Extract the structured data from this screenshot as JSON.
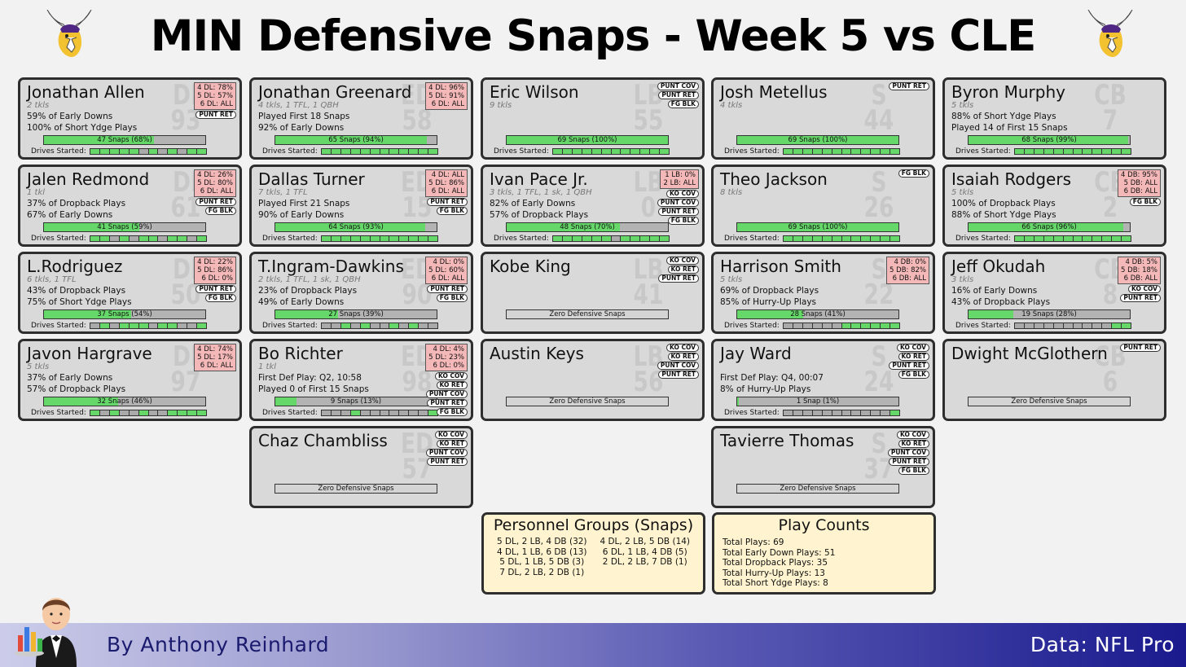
{
  "title": "MIN Defensive Snaps - Week 5 vs CLE",
  "footer": {
    "author": "By Anthony Reinhard",
    "source": "Data: NFL Pro"
  },
  "colors": {
    "fill": "#66d86a",
    "bar_bg": "#b3b3b3",
    "alignment_bg": "#f4b8b8",
    "card_bg": "#d9d9d9",
    "summary_bg": "#fff4cf"
  },
  "drives_total": 12,
  "players": [
    {
      "col": 0,
      "row": 0,
      "name": "Jonathan Allen",
      "pos": "DI",
      "num": "93",
      "sub": "2 tkls",
      "lines": [
        "59% of Early Downs",
        "100% of Short Ydge Plays"
      ],
      "bar": "47 Snaps (68%)",
      "pct": 0.68,
      "drives": [
        1,
        1,
        1,
        1,
        1,
        0,
        1,
        0,
        1,
        0,
        1,
        1
      ],
      "align": [
        "4 DL: 78%",
        "5 DL: 57%",
        "6 DL: ALL"
      ],
      "tags": [
        "PUNT RET"
      ]
    },
    {
      "col": 1,
      "row": 0,
      "name": "Jonathan Greenard",
      "pos": "ED",
      "num": "58",
      "sub": "4 tkls, 1 TFL, 1 QBH",
      "lines": [
        "Played First 18 Snaps",
        "92% of Early Downs"
      ],
      "bar": "65 Snaps (94%)",
      "pct": 0.94,
      "drives": [
        1,
        1,
        1,
        1,
        1,
        1,
        1,
        1,
        1,
        1,
        1,
        1
      ],
      "align": [
        "4 DL: 96%",
        "5 DL: 91%",
        "6 DL: ALL"
      ],
      "tags": []
    },
    {
      "col": 2,
      "row": 0,
      "name": "Eric Wilson",
      "pos": "LB",
      "num": "55",
      "sub": "9 tkls",
      "lines": [],
      "bar": "69 Snaps (100%)",
      "pct": 1,
      "drives": [
        1,
        1,
        1,
        1,
        1,
        1,
        1,
        1,
        1,
        1,
        1,
        1
      ],
      "align": [],
      "tags": [
        "PUNT COV",
        "PUNT RET",
        "FG BLK"
      ]
    },
    {
      "col": 3,
      "row": 0,
      "name": "Josh Metellus",
      "pos": "S",
      "num": "44",
      "sub": "4 tkls",
      "lines": [],
      "bar": "69 Snaps (100%)",
      "pct": 1,
      "drives": [
        1,
        1,
        1,
        1,
        1,
        1,
        1,
        1,
        1,
        1,
        1,
        1
      ],
      "align": [],
      "tags": [
        "PUNT RET"
      ]
    },
    {
      "col": 4,
      "row": 0,
      "name": "Byron Murphy",
      "pos": "CB",
      "num": "7",
      "sub": "5 tkls",
      "lines": [
        "88% of Short Ydge Plays",
        "Played 14 of First 15 Snaps"
      ],
      "bar": "68 Snaps (99%)",
      "pct": 0.99,
      "drives": [
        1,
        1,
        1,
        1,
        1,
        1,
        1,
        1,
        1,
        1,
        1,
        1
      ],
      "align": [],
      "tags": []
    },
    {
      "col": 0,
      "row": 1,
      "name": "Jalen Redmond",
      "pos": "DI",
      "num": "61",
      "sub": "1 tkl",
      "lines": [
        "37% of Dropback Plays",
        "67% of Early Downs"
      ],
      "bar": "41 Snaps (59%)",
      "pct": 0.59,
      "drives": [
        1,
        1,
        0,
        1,
        0,
        1,
        1,
        0,
        1,
        1,
        0,
        1
      ],
      "align": [
        "4 DL: 26%",
        "5 DL: 80%",
        "6 DL: ALL"
      ],
      "tags": [
        "PUNT RET",
        "FG BLK"
      ]
    },
    {
      "col": 1,
      "row": 1,
      "name": "Dallas Turner",
      "pos": "ED",
      "num": "15",
      "sub": "7 tkls, 1 TFL",
      "lines": [
        "Played First 21 Snaps",
        "90% of Early Downs"
      ],
      "bar": "64 Snaps (93%)",
      "pct": 0.93,
      "drives": [
        1,
        1,
        1,
        1,
        1,
        1,
        1,
        1,
        1,
        1,
        1,
        1
      ],
      "align": [
        "4 DL: ALL",
        "5 DL: 86%",
        "6 DL: ALL"
      ],
      "tags": [
        "PUNT RET",
        "FG BLK"
      ]
    },
    {
      "col": 2,
      "row": 1,
      "name": "Ivan Pace Jr.",
      "pos": "LB",
      "num": "0",
      "sub": "3 tkls, 1 TFL, 1 sk, 1 QBH",
      "lines": [
        "82% of Early Downs",
        "57% of Dropback Plays"
      ],
      "bar": "48 Snaps (70%)",
      "pct": 0.7,
      "drives": [
        1,
        1,
        1,
        1,
        1,
        1,
        0,
        1,
        1,
        1,
        1,
        1
      ],
      "align": [
        "1 LB: 0%",
        "2 LB: ALL"
      ],
      "tags": [
        "KO COV",
        "PUNT COV",
        "PUNT RET",
        "FG BLK"
      ]
    },
    {
      "col": 3,
      "row": 1,
      "name": "Theo Jackson",
      "pos": "S",
      "num": "26",
      "sub": "8 tkls",
      "lines": [],
      "bar": "69 Snaps (100%)",
      "pct": 1,
      "drives": [
        1,
        1,
        1,
        1,
        1,
        1,
        1,
        1,
        1,
        1,
        1,
        1
      ],
      "align": [],
      "tags": [
        "FG BLK"
      ]
    },
    {
      "col": 4,
      "row": 1,
      "name": "Isaiah Rodgers",
      "pos": "CB",
      "num": "2",
      "sub": "5 tkls",
      "lines": [
        "100% of Dropback Plays",
        "88% of Short Ydge Plays"
      ],
      "bar": "66 Snaps (96%)",
      "pct": 0.96,
      "drives": [
        1,
        1,
        1,
        1,
        1,
        1,
        1,
        1,
        1,
        1,
        1,
        1
      ],
      "align": [
        "4 DB: 95%",
        "5 DB: ALL",
        "6 DB: ALL"
      ],
      "tags": [
        "FG BLK"
      ]
    },
    {
      "col": 0,
      "row": 2,
      "name": "L.Rodriguez",
      "pos": "DI",
      "num": "50",
      "sub": "6 tkls, 1 TFL",
      "lines": [
        "43% of Dropback Plays",
        "75% of Short Ydge Plays"
      ],
      "bar": "37 Snaps (54%)",
      "pct": 0.54,
      "drives": [
        0,
        1,
        0,
        1,
        1,
        1,
        0,
        1,
        1,
        0,
        0,
        1
      ],
      "align": [
        "4 DL: 22%",
        "5 DL: 86%",
        "6 DL: 0%"
      ],
      "tags": [
        "PUNT RET",
        "FG BLK"
      ]
    },
    {
      "col": 1,
      "row": 2,
      "name": "T.Ingram-Dawkins",
      "pos": "ED",
      "num": "90",
      "sub": "2 tkls, 1 TFL, 1 sk, 1 QBH",
      "lines": [
        "23% of Dropback Plays",
        "49% of Early Downs"
      ],
      "bar": "27 Snaps (39%)",
      "pct": 0.39,
      "drives": [
        0,
        0,
        1,
        0,
        1,
        0,
        0,
        1,
        0,
        1,
        0,
        0
      ],
      "align": [
        "4 DL: 0%",
        "5 DL: 60%",
        "6 DL: ALL"
      ],
      "tags": [
        "PUNT RET",
        "FG BLK"
      ]
    },
    {
      "col": 2,
      "row": 2,
      "name": "Kobe King",
      "pos": "LB",
      "num": "41",
      "sub": "",
      "lines": [],
      "bar": "Zero Defensive Snaps",
      "pct": 0,
      "drives": null,
      "align": [],
      "tags": [
        "KO COV",
        "KO RET",
        "PUNT RET"
      ]
    },
    {
      "col": 3,
      "row": 2,
      "name": "Harrison Smith",
      "pos": "S",
      "num": "22",
      "sub": "5 tkls",
      "lines": [
        "69% of Dropback Plays",
        "85% of Hurry-Up Plays"
      ],
      "bar": "28 Snaps (41%)",
      "pct": 0.41,
      "drives": [
        0,
        0,
        0,
        0,
        0,
        0,
        1,
        1,
        1,
        1,
        1,
        1
      ],
      "align": [
        "4 DB: 0%",
        "5 DB: 82%",
        "6 DB: ALL"
      ],
      "tags": []
    },
    {
      "col": 4,
      "row": 2,
      "name": "Jeff Okudah",
      "pos": "CB",
      "num": "8",
      "sub": "3 tkls",
      "lines": [
        "16% of Early Downs",
        "43% of Dropback Plays"
      ],
      "bar": "19 Snaps (28%)",
      "pct": 0.28,
      "drives": [
        0,
        0,
        0,
        0,
        0,
        0,
        0,
        0,
        0,
        0,
        1,
        1
      ],
      "align": [
        "4 DB: 5%",
        "5 DB: 18%",
        "6 DB: ALL"
      ],
      "tags": [
        "KO COV",
        "PUNT RET"
      ]
    },
    {
      "col": 0,
      "row": 3,
      "name": "Javon Hargrave",
      "pos": "DI",
      "num": "97",
      "sub": "5 tkls",
      "lines": [
        "37% of Early Downs",
        "57% of Dropback Plays"
      ],
      "bar": "32 Snaps (46%)",
      "pct": 0.46,
      "drives": [
        1,
        0,
        1,
        0,
        0,
        1,
        0,
        0,
        1,
        1,
        1,
        1
      ],
      "align": [
        "4 DL: 74%",
        "5 DL: 17%",
        "6 DL: ALL"
      ],
      "tags": []
    },
    {
      "col": 1,
      "row": 3,
      "name": "Bo Richter",
      "pos": "ED",
      "num": "98",
      "sub": "1 tkl",
      "lines": [
        "First Def Play: Q2, 10:58",
        "Played 0 of First 15 Snaps"
      ],
      "bar": "9 Snaps (13%)",
      "pct": 0.13,
      "drives": [
        0,
        0,
        0,
        1,
        0,
        0,
        0,
        0,
        0,
        0,
        0,
        1
      ],
      "align": [
        "4 DL: 4%",
        "5 DL: 23%",
        "6 DL: 0%"
      ],
      "tags": [
        "KO COV",
        "KO RET",
        "PUNT COV",
        "PUNT RET",
        "FG BLK"
      ]
    },
    {
      "col": 2,
      "row": 3,
      "name": "Austin Keys",
      "pos": "LB",
      "num": "56",
      "sub": "",
      "lines": [],
      "bar": "Zero Defensive Snaps",
      "pct": 0,
      "drives": null,
      "align": [],
      "tags": [
        "KO COV",
        "KO RET",
        "PUNT COV",
        "PUNT RET"
      ]
    },
    {
      "col": 3,
      "row": 3,
      "name": "Jay Ward",
      "pos": "S",
      "num": "24",
      "sub": "",
      "lines": [
        "First Def Play: Q4, 00:07",
        "8% of Hurry-Up Plays"
      ],
      "bar": "1 Snap (1%)",
      "pct": 0.01,
      "drives": [
        0,
        0,
        0,
        0,
        0,
        0,
        0,
        0,
        0,
        0,
        0,
        1
      ],
      "align": [],
      "tags": [
        "KO COV",
        "KO RET",
        "PUNT RET",
        "FG BLK"
      ]
    },
    {
      "col": 4,
      "row": 3,
      "name": "Dwight McGlothern",
      "pos": "CB",
      "num": "6",
      "sub": "",
      "lines": [],
      "bar": "Zero Defensive Snaps",
      "pct": 0,
      "drives": null,
      "align": [],
      "tags": [
        "PUNT RET"
      ]
    },
    {
      "col": 1,
      "row": 4,
      "name": "Chaz Chambliss",
      "pos": "ED",
      "num": "57",
      "sub": "",
      "lines": [],
      "bar": "Zero Defensive Snaps",
      "pct": 0,
      "drives": null,
      "align": [],
      "tags": [
        "KO COV",
        "KO RET",
        "PUNT COV",
        "PUNT RET"
      ]
    },
    {
      "col": 3,
      "row": 4,
      "name": "Tavierre Thomas",
      "pos": "S",
      "num": "37",
      "sub": "",
      "lines": [],
      "bar": "Zero Defensive Snaps",
      "pct": 0,
      "drives": null,
      "align": [],
      "tags": [
        "KO COV",
        "KO RET",
        "PUNT COV",
        "PUNT RET",
        "FG BLK"
      ]
    }
  ],
  "drives_label": "Drives Started:",
  "personnel": {
    "title": "Personnel Groups (Snaps)",
    "items": [
      "5 DL, 2 LB, 4 DB (32)",
      "4 DL, 2 LB, 5 DB (14)",
      "4 DL, 1 LB, 6 DB (13)",
      "6 DL, 1 LB, 4 DB (5)",
      "5 DL, 1 LB, 5 DB (3)",
      "2 DL, 2 LB, 7 DB (1)",
      "7 DL, 2 LB, 2 DB (1)"
    ]
  },
  "counts": {
    "title": "Play Counts",
    "items": [
      "Total Plays: 69",
      "Total Early Down Plays: 51",
      "Total Dropback Plays: 35",
      "Total Hurry-Up Plays: 13",
      "Total Short Ydge Plays: 8"
    ]
  }
}
